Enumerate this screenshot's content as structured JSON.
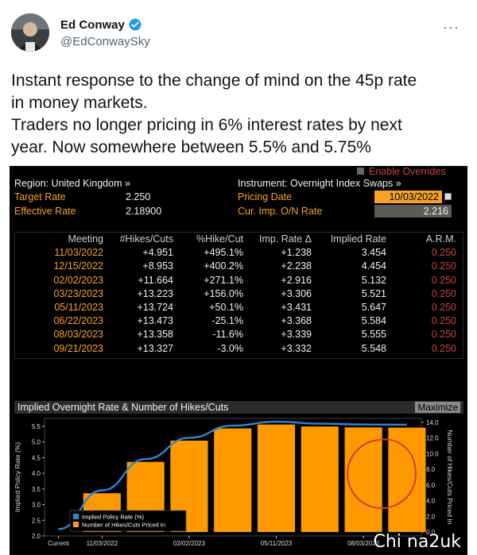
{
  "tweet": {
    "author": "Ed Conway",
    "handle": "@EdConwaySky",
    "more": "···",
    "lines": [
      "Instant response to the change of mind on the 45p rate",
      "in money markets.",
      "Traders no longer pricing in 6% interest rates by next",
      "year. Now somewhere between 5.5% and 5.75%"
    ]
  },
  "terminal": {
    "enable_overrides": "Enable Overrides",
    "region": "Region: United Kingdom »",
    "instrument": "Instrument: Overnight Index Swaps »",
    "target_rate_label": "Target Rate",
    "target_rate_value": "2.250",
    "effective_rate_label": "Effective Rate",
    "effective_rate_value": "2.18900",
    "pricing_date_label": "Pricing Date",
    "pricing_date_value": "10/03/2022",
    "cur_imp_label": "Cur. Imp. O/N Rate",
    "cur_imp_value": "2.216",
    "table": {
      "headers": [
        "Meeting",
        "#Hikes/Cuts",
        "%Hike/Cut",
        "Imp. Rate Δ",
        "Implied Rate",
        "A.R.M."
      ],
      "rows": [
        [
          "11/03/2022",
          "+4.951",
          "+495.1%",
          "+1.238",
          "3.454",
          "0.250"
        ],
        [
          "12/15/2022",
          "+8.953",
          "+400.2%",
          "+2.238",
          "4.454",
          "0.250"
        ],
        [
          "02/02/2023",
          "+11.664",
          "+271.1%",
          "+2.916",
          "5.132",
          "0.250"
        ],
        [
          "03/23/2023",
          "+13.223",
          "+156.0%",
          "+3.306",
          "5.521",
          "0.250"
        ],
        [
          "05/11/2023",
          "+13.724",
          "+50.1%",
          "+3.431",
          "5.647",
          "0.250"
        ],
        [
          "06/22/2023",
          "+13.473",
          "-25.1%",
          "+3.368",
          "5.584",
          "0.250"
        ],
        [
          "08/03/2023",
          "+13.358",
          "-11.6%",
          "+3.339",
          "5.555",
          "0.250"
        ],
        [
          "09/21/2023",
          "+13.327",
          "-3.0%",
          "+3.332",
          "5.548",
          "0.250"
        ]
      ]
    },
    "chart_title": "Implied Overnight Rate & Number of Hikes/Cuts",
    "maximize": "Maximize",
    "watermark": "Chi na2uk",
    "colors": {
      "orange": "#f7a226",
      "bar": "#ff9900",
      "line": "#2a87d6",
      "red": "#c8443c",
      "ring": "#d63a33"
    }
  },
  "chart_data": {
    "type": "bar",
    "title": "Implied Overnight Rate & Number of Hikes/Cuts",
    "categories": [
      "Current",
      "11/03/2022",
      "12/15/2022",
      "02/02/2023",
      "03/23/2023",
      "05/11/2023",
      "06/22/2023",
      "08/03/2023",
      "09/21/2023"
    ],
    "x_tick_labels": [
      "Current",
      "11/03/2022",
      "02/02/2023",
      "05/11/2023",
      "08/03/2023"
    ],
    "series": [
      {
        "name": "Implied Policy Rate (%)",
        "kind": "line",
        "axis": "left",
        "values": [
          2.216,
          3.454,
          4.454,
          5.132,
          5.521,
          5.647,
          5.584,
          5.555,
          5.548
        ]
      },
      {
        "name": "Number of Hikes/Cuts Priced In",
        "kind": "bar",
        "axis": "right",
        "values": [
          0,
          4.951,
          8.953,
          11.664,
          13.223,
          13.724,
          13.473,
          13.358,
          13.327
        ]
      }
    ],
    "ylabel": "Implied Policy Rate (%)",
    "y2label": "Number of Hikes/Cuts Priced In",
    "ylim": [
      2.0,
      5.75
    ],
    "yticks": [
      "2.0",
      "2.5",
      "3.0",
      "3.5",
      "4.0",
      "4.5",
      "5.0",
      "5.5"
    ],
    "y2lim": [
      -0.5,
      14.5
    ],
    "y2ticks": [
      "0.0",
      "2.0",
      "4.0",
      "6.0",
      "8.0",
      "10.0",
      "12.0",
      "14.0"
    ],
    "legend_position": "bottom-left"
  }
}
